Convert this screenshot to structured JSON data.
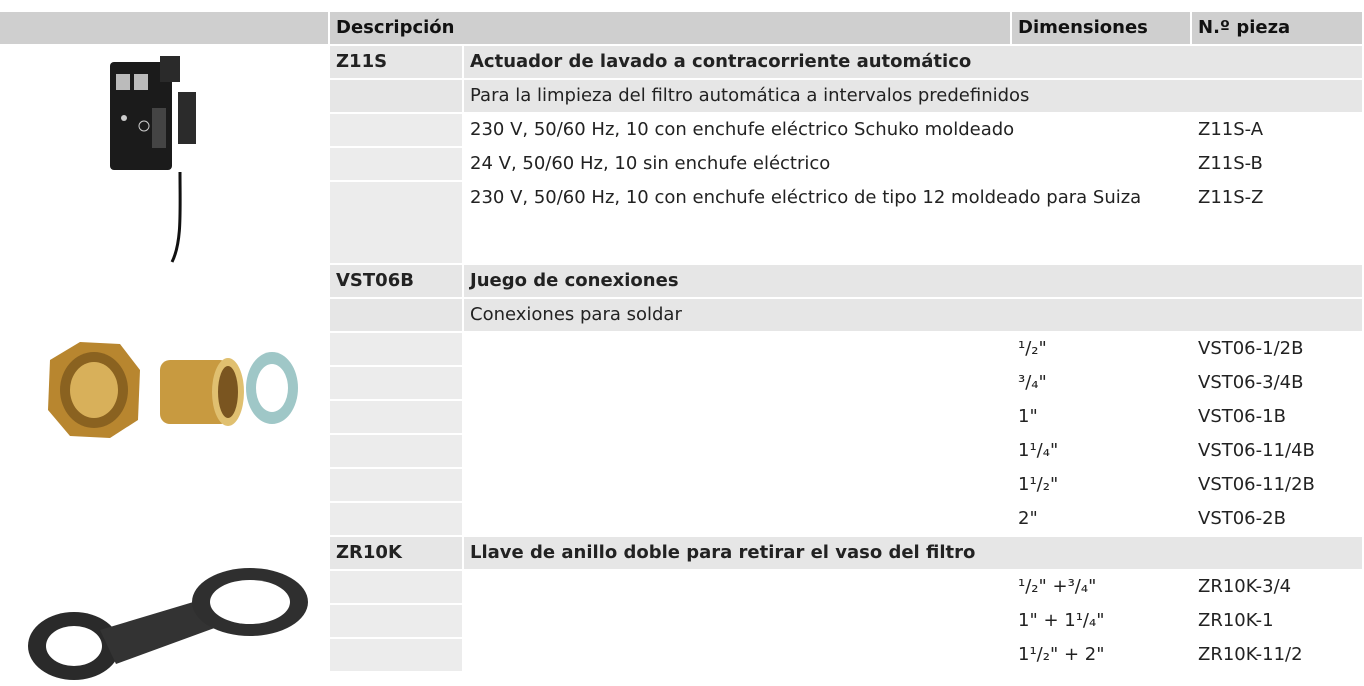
{
  "header": {
    "description": "Descripción",
    "dimensions": "Dimensiones",
    "part_number": "N.º pieza"
  },
  "groups": [
    {
      "code": "Z11S",
      "title": "Actuador de lavado a contracorriente automático",
      "subtitle": "Para la limpieza del filtro automática a intervalos predefinidos",
      "rows": [
        {
          "description": "230 V, 50/60 Hz, 10 con enchufe eléctrico Schuko moldeado",
          "part": "Z11S-A"
        },
        {
          "description": "24 V, 50/60 Hz, 10 sin enchufe eléctrico",
          "part": "Z11S-B"
        },
        {
          "description": "230 V, 50/60 Hz, 10 con enchufe eléctrico de tipo 12 moldeado para Suiza",
          "part": "Z11S-Z"
        }
      ]
    },
    {
      "code": "VST06B",
      "title": "Juego de conexiones",
      "subtitle": "Conexiones para soldar",
      "rows": [
        {
          "dimension": "¹/₂\"",
          "part": "VST06-1/2B"
        },
        {
          "dimension": "³/₄\"",
          "part": "VST06-3/4B"
        },
        {
          "dimension": "1\"",
          "part": "VST06-1B"
        },
        {
          "dimension": "1¹/₄\"",
          "part": "VST06-11/4B"
        },
        {
          "dimension": "1¹/₂\"",
          "part": "VST06-11/2B"
        },
        {
          "dimension": "2\"",
          "part": "VST06-2B"
        }
      ]
    },
    {
      "code": "ZR10K",
      "title": "Llave de anillo doble para retirar el vaso del filtro",
      "rows": [
        {
          "dimension": "¹/₂\" +³/₄\"",
          "part": "ZR10K-3/4"
        },
        {
          "dimension": "1\" + 1¹/₄\"",
          "part": "ZR10K-1"
        },
        {
          "dimension": "1¹/₂\" + 2\"",
          "part": "ZR10K-11/2"
        }
      ]
    }
  ]
}
